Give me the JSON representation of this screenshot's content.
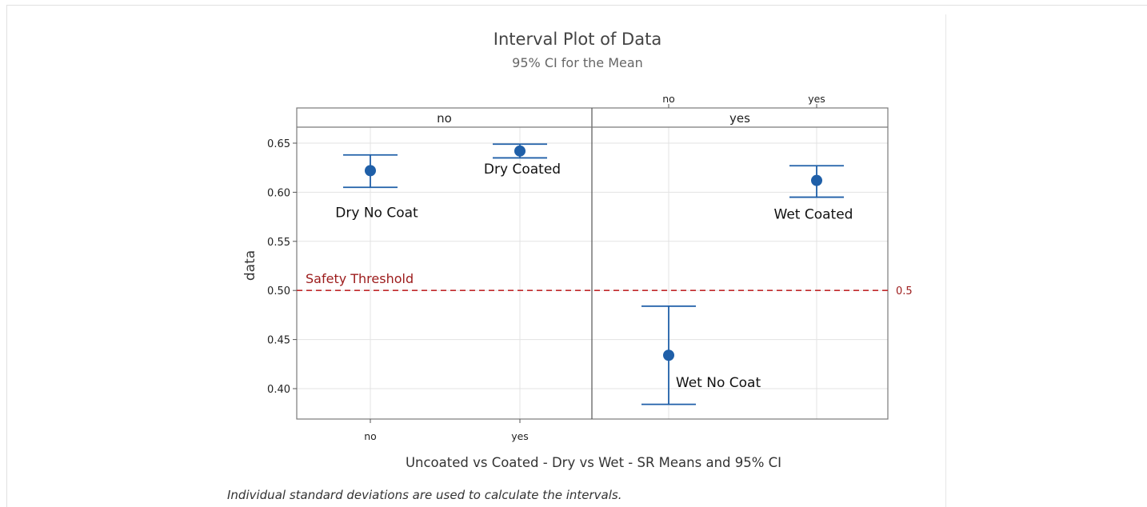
{
  "chart_data": {
    "type": "interval",
    "title": "Interval Plot of Data",
    "subtitle": "95% CI for the Mean",
    "ylabel": "data",
    "xlabel": "Uncoated vs Coated - Dry vs Wet - SR Means and 95% CI",
    "footnote": "Individual standard deviations are used to calculate the intervals.",
    "ylim": [
      0.37,
      0.665
    ],
    "yticks": [
      0.4,
      0.45,
      0.5,
      0.55,
      0.6,
      0.65
    ],
    "ytick_labels": [
      "0.40",
      "0.45",
      "0.50",
      "0.55",
      "0.60",
      "0.65"
    ],
    "panels": [
      {
        "label": "no",
        "categories": [
          "no",
          "yes"
        ],
        "tick_position": "bottom",
        "points": [
          {
            "category": "no",
            "mean": 0.622,
            "lower": 0.605,
            "upper": 0.638,
            "annotation": "Dry No Coat"
          },
          {
            "category": "yes",
            "mean": 0.642,
            "lower": 0.635,
            "upper": 0.649,
            "annotation": "Dry Coated"
          }
        ]
      },
      {
        "label": "yes",
        "categories": [
          "no",
          "yes"
        ],
        "tick_position": "top",
        "points": [
          {
            "category": "no",
            "mean": 0.434,
            "lower": 0.384,
            "upper": 0.484,
            "annotation": "Wet No Coat"
          },
          {
            "category": "yes",
            "mean": 0.612,
            "lower": 0.595,
            "upper": 0.627,
            "annotation": "Wet Coated"
          }
        ]
      }
    ],
    "reference_line": {
      "value": 0.5,
      "label": "Safety Threshold",
      "value_label": "0.5",
      "color": "#c0282a",
      "style": "dashed"
    },
    "colors": {
      "series": "#1f5fa8",
      "grid": "#e3e3e3",
      "axis": "#555555"
    },
    "grid": true
  }
}
